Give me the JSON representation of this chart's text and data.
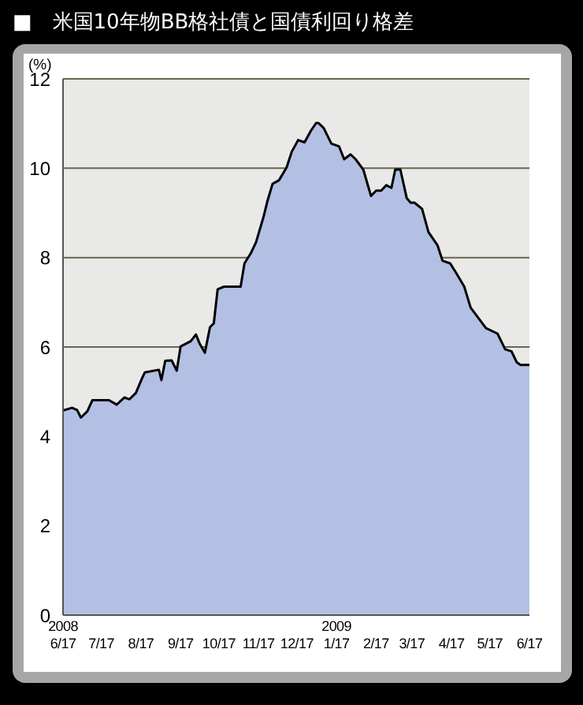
{
  "chart_data": {
    "type": "area",
    "title": "■　米国10年物BB格社債と国債利回り格差",
    "ylabel": "(%)",
    "x": [
      "2008-06-17",
      "2008-06-24",
      "2008-06-28",
      "2008-07-01",
      "2008-07-06",
      "2008-07-10",
      "2008-07-23",
      "2008-07-29",
      "2008-08-04",
      "2008-08-08",
      "2008-08-13",
      "2008-08-18",
      "2008-08-20",
      "2008-08-31",
      "2008-09-02",
      "2008-09-05",
      "2008-09-10",
      "2008-09-14",
      "2008-09-17",
      "2008-09-25",
      "2008-09-29",
      "2008-10-02",
      "2008-10-06",
      "2008-10-10",
      "2008-10-13",
      "2008-10-16",
      "2008-10-21",
      "2008-11-03",
      "2008-11-06",
      "2008-11-11",
      "2008-11-15",
      "2008-11-21",
      "2008-11-24",
      "2008-11-28",
      "2008-12-03",
      "2008-12-09",
      "2008-12-13",
      "2008-12-18",
      "2008-12-23",
      "2008-12-28",
      "2009-01-01",
      "2009-01-03",
      "2009-01-07",
      "2009-01-13",
      "2009-01-19",
      "2009-01-23",
      "2009-01-28",
      "2009-02-01",
      "2009-02-07",
      "2009-02-13",
      "2009-02-17",
      "2009-02-21",
      "2009-02-25",
      "2009-03-01",
      "2009-03-04",
      "2009-03-08",
      "2009-03-13",
      "2009-03-16",
      "2009-03-19",
      "2009-03-25",
      "2009-03-30",
      "2009-04-06",
      "2009-04-10",
      "2009-04-16",
      "2009-04-21",
      "2009-04-27",
      "2009-05-02",
      "2009-05-08",
      "2009-05-14",
      "2009-05-23",
      "2009-05-29",
      "2009-06-03",
      "2009-06-07",
      "2009-06-10",
      "2009-06-17"
    ],
    "series": [
      {
        "color": "#b3c0e3",
        "values": [
          4.58,
          4.64,
          4.59,
          4.42,
          4.56,
          4.81,
          4.81,
          4.71,
          4.87,
          4.83,
          4.97,
          5.31,
          5.43,
          5.49,
          5.26,
          5.69,
          5.7,
          5.47,
          6.01,
          6.13,
          6.28,
          6.07,
          5.87,
          6.44,
          6.53,
          7.29,
          7.35,
          7.35,
          7.87,
          8.1,
          8.34,
          8.92,
          9.27,
          9.65,
          9.73,
          10.02,
          10.37,
          10.63,
          10.58,
          10.84,
          11.01,
          11.01,
          10.9,
          10.55,
          10.49,
          10.2,
          10.31,
          10.2,
          9.97,
          9.38,
          9.5,
          9.5,
          9.62,
          9.56,
          9.97,
          9.97,
          9.33,
          9.23,
          9.23,
          9.09,
          8.57,
          8.28,
          7.93,
          7.87,
          7.64,
          7.35,
          6.88,
          6.65,
          6.42,
          6.3,
          5.95,
          5.9,
          5.66,
          5.6,
          5.6
        ]
      }
    ],
    "xlim": [
      "2008-06-17",
      "2009-06-17"
    ],
    "xticks": [
      {
        "value": "2008-06-17",
        "label": "2008\n6/17"
      },
      {
        "value": "2008-07-17",
        "label": "7/17"
      },
      {
        "value": "2008-08-17",
        "label": "8/17"
      },
      {
        "value": "2008-09-17",
        "label": "9/17"
      },
      {
        "value": "2008-10-17",
        "label": "10/17"
      },
      {
        "value": "2008-11-17",
        "label": "11/17"
      },
      {
        "value": "2008-12-17",
        "label": "12/17"
      },
      {
        "value": "2009-01-17",
        "label": "2009\n1/17"
      },
      {
        "value": "2009-02-17",
        "label": "2/17"
      },
      {
        "value": "2009-03-17",
        "label": "3/17"
      },
      {
        "value": "2009-04-17",
        "label": "4/17"
      },
      {
        "value": "2009-05-17",
        "label": "5/17"
      },
      {
        "value": "2009-06-17",
        "label": "6/17"
      }
    ],
    "ylim": [
      0,
      12
    ],
    "yticks": [
      0,
      2,
      4,
      6,
      8,
      10,
      12
    ],
    "grid": "y",
    "line_style": "solid",
    "marker": "none"
  }
}
